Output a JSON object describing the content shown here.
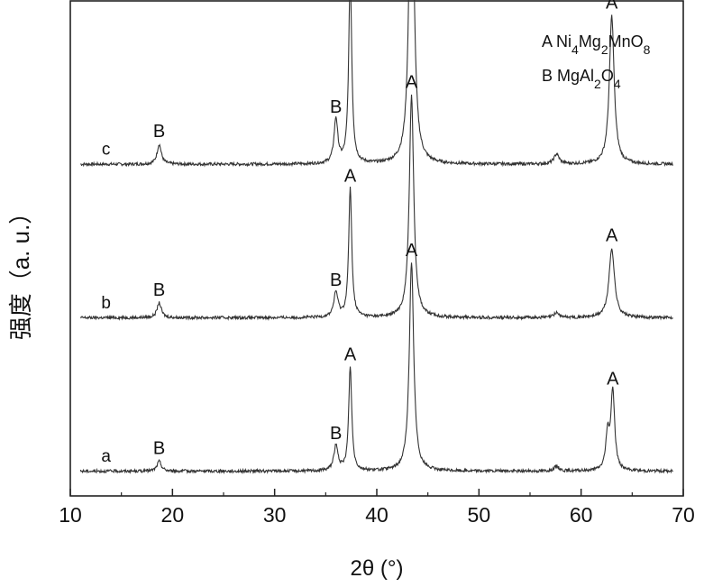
{
  "chart_data": {
    "type": "line",
    "xlabel": "2θ (°)",
    "ylabel": "强度（a. u.）",
    "xlim": [
      10,
      70
    ],
    "xticks": [
      "10",
      "20",
      "30",
      "40",
      "50",
      "60",
      "70"
    ],
    "grid": false,
    "legend": {
      "position": "top-right",
      "entries": [
        {
          "letter": "A",
          "formula": [
            [
              "Ni",
              ""
            ],
            [
              "4",
              "sub"
            ],
            [
              "Mg",
              ""
            ],
            [
              "2",
              "sub"
            ],
            [
              "MnO",
              ""
            ],
            [
              "8",
              "sub"
            ]
          ]
        },
        {
          "letter": "B",
          "formula": [
            [
              "MgAl",
              ""
            ],
            [
              "2",
              "sub"
            ],
            [
              "O",
              ""
            ],
            [
              "4",
              "sub"
            ]
          ]
        }
      ]
    },
    "series": [
      {
        "label": "c",
        "baseline": 0.67,
        "peaks": [
          {
            "x": 18.7,
            "h": 0.04,
            "w": 0.25,
            "tag": "B"
          },
          {
            "x": 36.0,
            "h": 0.09,
            "w": 0.22,
            "tag": "B"
          },
          {
            "x": 37.4,
            "h": 0.38,
            "w": 0.18,
            "tag": "A"
          },
          {
            "x": 43.4,
            "h": 0.74,
            "w": 0.26,
            "tag": "A"
          },
          {
            "x": 57.6,
            "h": 0.02,
            "w": 0.3,
            "tag": ""
          },
          {
            "x": 63.0,
            "h": 0.3,
            "w": 0.28,
            "tag": "A"
          }
        ]
      },
      {
        "label": "b",
        "baseline": 0.36,
        "peaks": [
          {
            "x": 18.7,
            "h": 0.03,
            "w": 0.25,
            "tag": "B"
          },
          {
            "x": 36.0,
            "h": 0.05,
            "w": 0.25,
            "tag": "B"
          },
          {
            "x": 37.4,
            "h": 0.26,
            "w": 0.18,
            "tag": "A"
          },
          {
            "x": 43.4,
            "h": 0.45,
            "w": 0.26,
            "tag": "A"
          },
          {
            "x": 57.6,
            "h": 0.01,
            "w": 0.3,
            "tag": ""
          },
          {
            "x": 63.0,
            "h": 0.14,
            "w": 0.32,
            "tag": "A"
          }
        ]
      },
      {
        "label": "a",
        "baseline": 0.05,
        "peaks": [
          {
            "x": 18.7,
            "h": 0.02,
            "w": 0.25,
            "tag": "B"
          },
          {
            "x": 36.0,
            "h": 0.05,
            "w": 0.25,
            "tag": "B"
          },
          {
            "x": 37.4,
            "h": 0.21,
            "w": 0.18,
            "tag": "A"
          },
          {
            "x": 43.4,
            "h": 0.42,
            "w": 0.26,
            "tag": "A"
          },
          {
            "x": 57.6,
            "h": 0.01,
            "w": 0.3,
            "tag": ""
          },
          {
            "x": 62.6,
            "h": 0.07,
            "w": 0.22,
            "tag": ""
          },
          {
            "x": 63.1,
            "h": 0.16,
            "w": 0.22,
            "tag": "A"
          }
        ]
      }
    ]
  }
}
